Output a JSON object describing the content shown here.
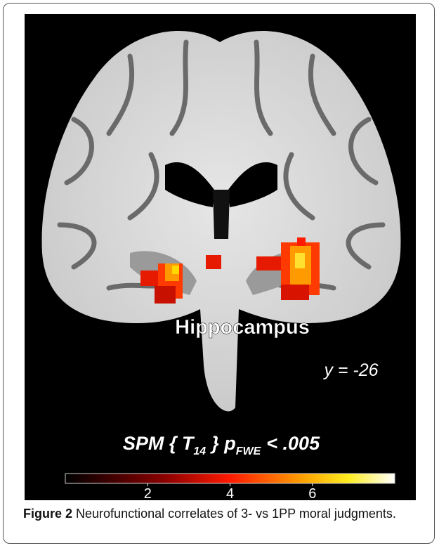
{
  "figure": {
    "region_label": "Hippocampus",
    "slice_label": "y = -26",
    "stat_label": {
      "prefix": "SPM { T",
      "sub1": "14",
      "middle": "} p",
      "sub2": "FWE",
      "suffix": "< .005"
    },
    "colorbar": {
      "range": [
        0,
        8
      ],
      "ticks": [
        2,
        4,
        6
      ]
    },
    "caption": {
      "label": "Figure 2",
      "text": "Neurofunctional correlates of 3- vs 1PP moral judgments."
    }
  }
}
